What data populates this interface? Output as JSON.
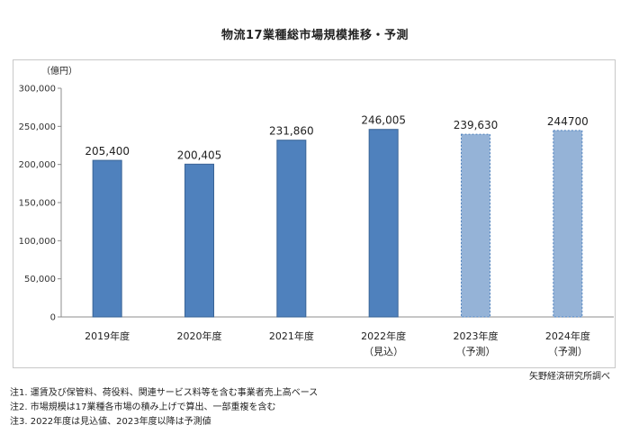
{
  "chart_data": {
    "type": "bar",
    "title": "物流17業種総市場規模推移・予測",
    "unit_label": "（億円）",
    "categories": [
      "2019年度",
      "2020年度",
      "2021年度",
      "2022年度",
      "2023年度",
      "2024年度"
    ],
    "category_sublabels": [
      "",
      "",
      "",
      "（見込）",
      "（予測）",
      "（予測）"
    ],
    "values": [
      205400,
      200405,
      231860,
      246005,
      239630,
      244700
    ],
    "value_labels": [
      "205,400",
      "200,405",
      "231,860",
      "246,005",
      "239,630",
      "244700"
    ],
    "bar_styles": [
      "actual",
      "actual",
      "actual",
      "actual",
      "forecast",
      "forecast"
    ],
    "ylim": [
      0,
      300000
    ],
    "yticks": [
      0,
      50000,
      100000,
      150000,
      200000,
      250000,
      300000
    ],
    "ytick_labels": [
      "0",
      "50,000",
      "100,000",
      "150,000",
      "200,000",
      "250,000",
      "300,000"
    ],
    "grid": false,
    "colors": {
      "actual": "#4f81bd",
      "actual_border": "#3a6496",
      "forecast": "#95b3d7",
      "forecast_border": "#4f81bd"
    }
  },
  "source": "矢野経済研究所調べ",
  "notes": [
    "注1.  運賃及び保管料、荷役料、関連サービス料等を含む事業者売上高ベース",
    "注2.  市場規模は17業種各市場の積み上げで算出、一部重複を含む",
    "注3.  2022年度は見込値、2023年度以降は予測値"
  ]
}
